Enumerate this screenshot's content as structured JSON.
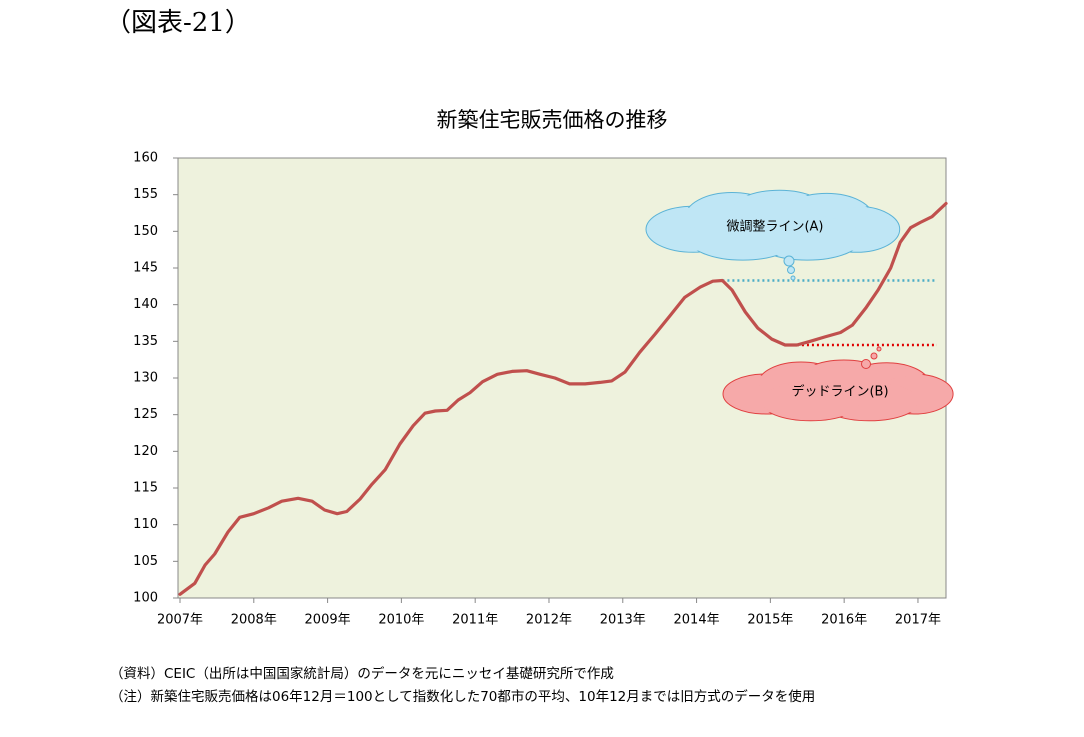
{
  "header": "（図表-21）",
  "chart_data": {
    "type": "line",
    "title": "新築住宅販売価格の推移",
    "x": [
      2007.0,
      2007.2,
      2007.34,
      2007.47,
      2007.65,
      2007.81,
      2008.0,
      2008.2,
      2008.38,
      2008.6,
      2008.79,
      2008.96,
      2009.13,
      2009.26,
      2009.44,
      2009.6,
      2009.78,
      2009.98,
      2010.16,
      2010.32,
      2010.46,
      2010.62,
      2010.77,
      2010.93,
      2011.1,
      2011.3,
      2011.5,
      2011.7,
      2011.88,
      2012.08,
      2012.28,
      2012.49,
      2012.69,
      2012.85,
      2013.03,
      2013.23,
      2013.44,
      2013.64,
      2013.84,
      2014.05,
      2014.22,
      2014.35,
      2014.48,
      2014.66,
      2014.83,
      2015.02,
      2015.2,
      2015.36,
      2015.54,
      2015.74,
      2015.95,
      2016.11,
      2016.29,
      2016.46,
      2016.63,
      2016.76,
      2016.9,
      2017.03,
      2017.19,
      2017.38
    ],
    "values": [
      100.5,
      102,
      104.5,
      106,
      109,
      111,
      111.5,
      112.3,
      113.2,
      113.6,
      113.2,
      112,
      111.5,
      111.8,
      113.5,
      115.5,
      117.5,
      121,
      123.5,
      125.2,
      125.5,
      125.6,
      127,
      128,
      129.5,
      130.5,
      130.9,
      131,
      130.5,
      130,
      129.2,
      129.2,
      129.4,
      129.6,
      130.8,
      133.5,
      136,
      138.5,
      141,
      142.4,
      143.2,
      143.3,
      142,
      139,
      136.8,
      135.3,
      134.5,
      134.5,
      135,
      135.6,
      136.2,
      137.2,
      139.5,
      142,
      145,
      148.5,
      150.5,
      151.2,
      152,
      153.8
    ],
    "color": "#c0504d",
    "xlim": [
      2007,
      2017.38
    ],
    "xticks": [
      {
        "value": 2007,
        "label": "2007年"
      },
      {
        "value": 2008,
        "label": "2008年"
      },
      {
        "value": 2009,
        "label": "2009年"
      },
      {
        "value": 2010,
        "label": "2010年"
      },
      {
        "value": 2011,
        "label": "2011年"
      },
      {
        "value": 2012,
        "label": "2012年"
      },
      {
        "value": 2013,
        "label": "2013年"
      },
      {
        "value": 2014,
        "label": "2014年"
      },
      {
        "value": 2015,
        "label": "2015年"
      },
      {
        "value": 2016,
        "label": "2016年"
      },
      {
        "value": 2017,
        "label": "2017年"
      }
    ],
    "ylim": [
      100,
      160
    ],
    "yticks": [
      100,
      105,
      110,
      115,
      120,
      125,
      130,
      135,
      140,
      145,
      150,
      155,
      160
    ],
    "grid": false,
    "annotations": [
      {
        "text": "微調整ライン(A)",
        "value": 143.3,
        "x_start": 2014.35,
        "color": "#4bacc6"
      },
      {
        "text": "デッドライン(B)",
        "value": 134.5,
        "x_start": 2015.36,
        "color": "#e00000"
      }
    ]
  },
  "notes": [
    "（資料）CEIC（出所は中国国家統計局）のデータを元にニッセイ基礎研究所で作成",
    "（注）新築住宅販売価格は06年12月＝100として指数化した70都市の平均、10年12月までは旧方式のデータを使用"
  ]
}
